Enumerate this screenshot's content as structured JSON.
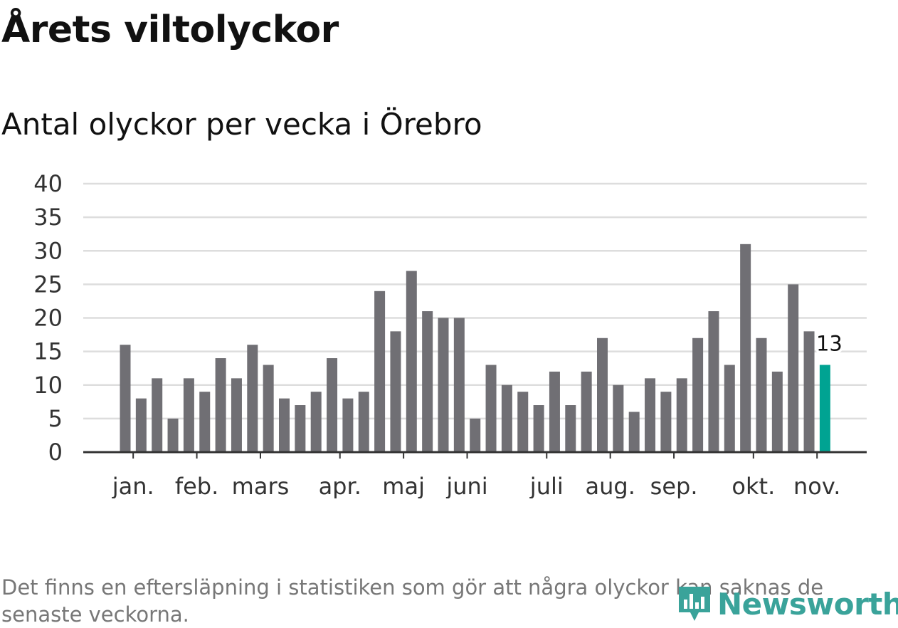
{
  "header": {
    "title": "Årets viltolyckor",
    "subtitle": "Antal olyckor per vecka i Örebro"
  },
  "footer": {
    "note": "Det finns en eftersläpning i statistiken som gör att några olyckor kan saknas de senaste veckorna.",
    "brand": "Newsworthy"
  },
  "colors": {
    "bar": "#706f74",
    "highlight": "#00a392",
    "grid": "#dddddd",
    "axis": "#333333",
    "brand": "#3aa39a"
  },
  "chart_data": {
    "type": "bar",
    "title": "Antal olyckor per vecka i Örebro",
    "xlabel": "",
    "ylabel": "",
    "ylim": [
      0,
      40
    ],
    "yticks": [
      0,
      5,
      10,
      15,
      20,
      25,
      30,
      35,
      40
    ],
    "grid": true,
    "series": [
      {
        "name": "Antal olyckor",
        "values": [
          16,
          8,
          11,
          5,
          11,
          9,
          14,
          11,
          16,
          13,
          8,
          7,
          9,
          14,
          8,
          9,
          24,
          18,
          27,
          21,
          20,
          20,
          5,
          13,
          10,
          9,
          7,
          12,
          7,
          12,
          17,
          10,
          6,
          11,
          9,
          11,
          17,
          21,
          13,
          31,
          17,
          12,
          25,
          18,
          13
        ]
      }
    ],
    "highlight_index": 44,
    "highlight_label": "13",
    "month_labels": [
      {
        "label": "jan.",
        "week": 0.5
      },
      {
        "label": "feb.",
        "week": 4.5
      },
      {
        "label": "mars",
        "week": 8.5
      },
      {
        "label": "apr.",
        "week": 13.5
      },
      {
        "label": "maj",
        "week": 17.5
      },
      {
        "label": "juni",
        "week": 21.5
      },
      {
        "label": "juli",
        "week": 26.5
      },
      {
        "label": "aug.",
        "week": 30.5
      },
      {
        "label": "sep.",
        "week": 34.5
      },
      {
        "label": "okt.",
        "week": 39.5
      },
      {
        "label": "nov.",
        "week": 43.5
      }
    ]
  }
}
